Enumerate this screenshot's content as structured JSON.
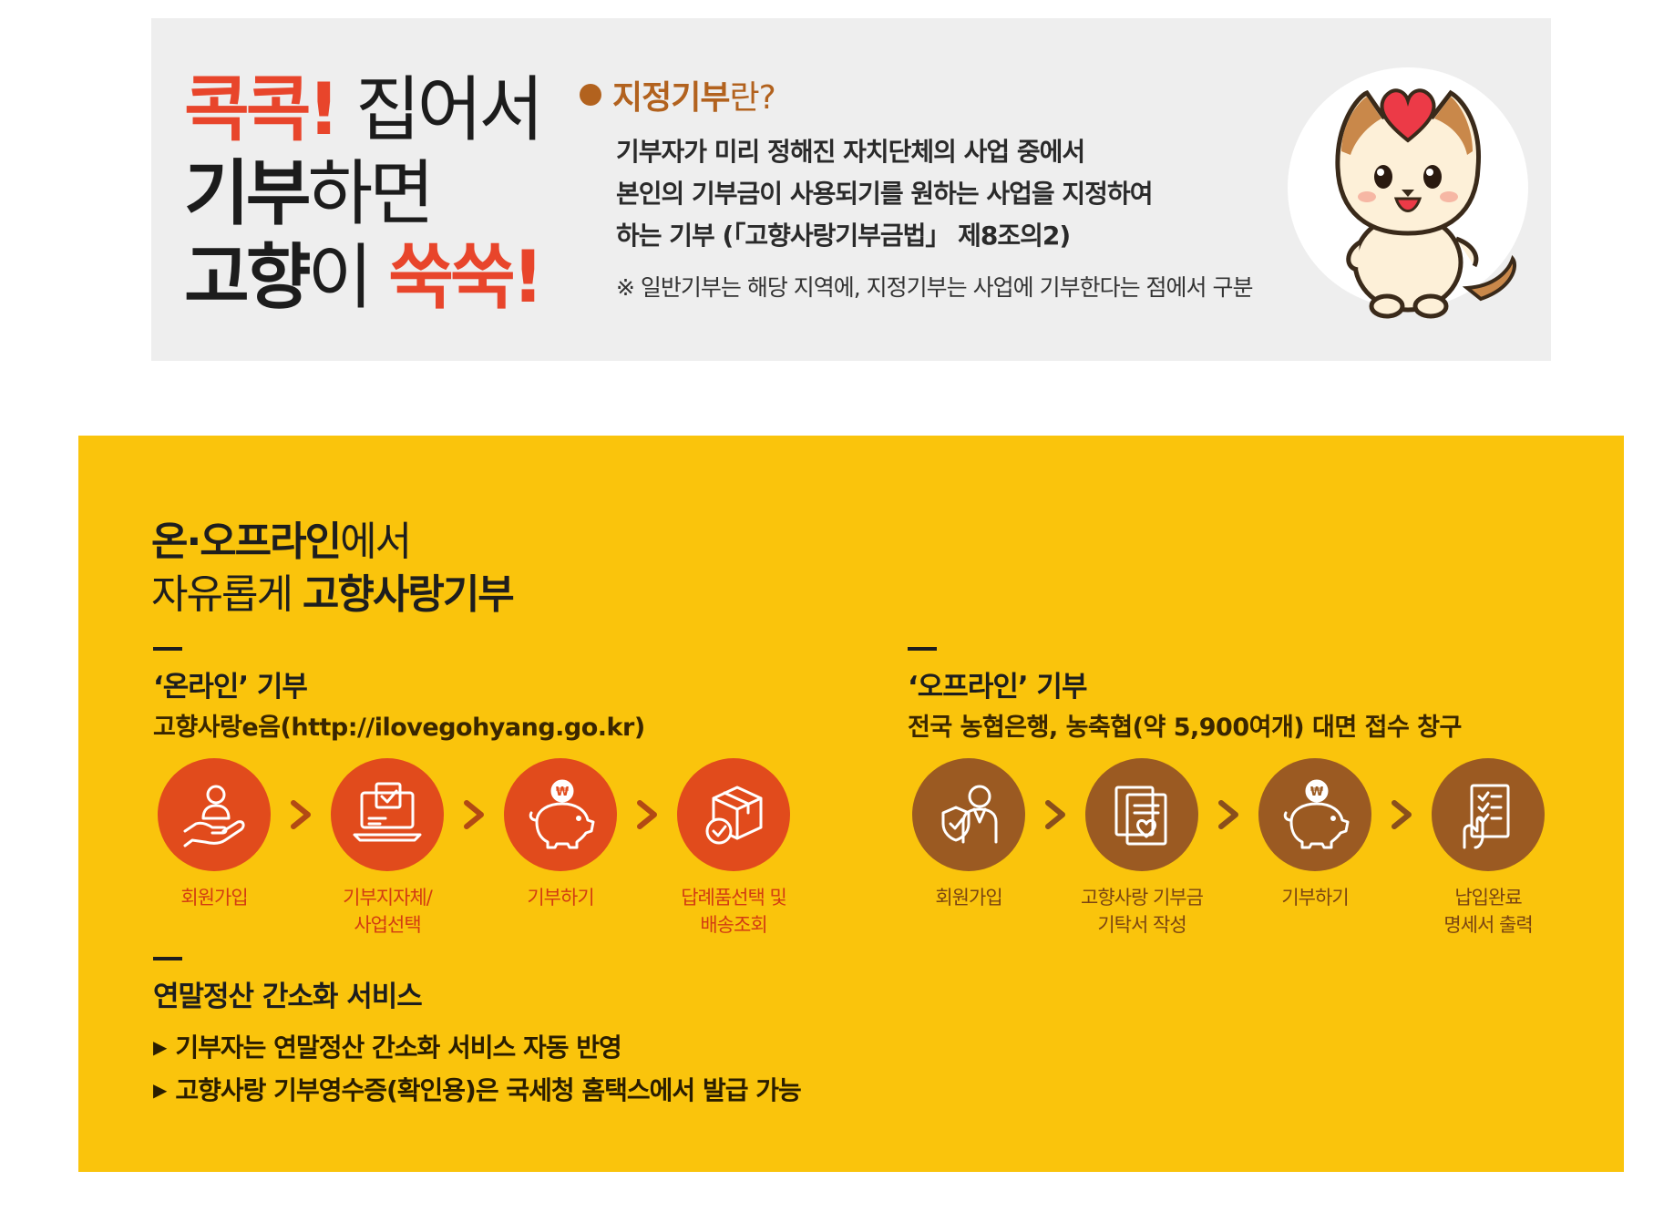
{
  "banner": {
    "slogan": {
      "line1_red": "콕콕!",
      "line1_rest": " 집어서",
      "line2_bold": "기부",
      "line2_rest": "하면",
      "line3_bold": "고향",
      "line3_mid": "이 ",
      "line3_red": "쑥쑥!"
    },
    "designated": {
      "heading_bold": "지정기부",
      "heading_rest": "란?",
      "desc_lines": [
        "기부자가 미리 정해진 자치단체의 사업 중에서",
        "본인의 기부금이 사용되기를 원하는 사업을 지정하여",
        "하는 기부 (「고향사랑기부금법」 제8조의2)"
      ],
      "note": "※ 일반기부는 해당 지역에, 지정기부는 사업에 기부한다는 점에서 구분"
    }
  },
  "main": {
    "title_line1_bold": "온·오프라인",
    "title_line1_rest": "에서",
    "title_line2_rest": "자유롭게 ",
    "title_line2_bold": "고향사랑기부",
    "online": {
      "title": "‘온라인’ 기부",
      "subtitle": "고향사랑e음(http://ilovegohyang.go.kr)",
      "steps": [
        {
          "icon": "hand-person-icon",
          "label": "회원가입"
        },
        {
          "icon": "laptop-check-icon",
          "label": "기부지자체/\n사업선택"
        },
        {
          "icon": "piggy-bank-icon",
          "label": "기부하기"
        },
        {
          "icon": "box-check-icon",
          "label": "답례품선택 및\n배송조회"
        }
      ]
    },
    "offline": {
      "title": "‘오프라인’ 기부",
      "subtitle": "전국 농협은행, 농축협(약 5,900여개) 대면 접수 창구",
      "steps": [
        {
          "icon": "person-shield-icon",
          "label": "회원가입"
        },
        {
          "icon": "document-heart-icon",
          "label": "고향사랑 기부금\n기탁서 작성"
        },
        {
          "icon": "piggy-bank-icon",
          "label": "기부하기"
        },
        {
          "icon": "checklist-icon",
          "label": "납입완료\n명세서 출력"
        }
      ]
    },
    "tax": {
      "title": "연말정산 간소화 서비스",
      "bullets": [
        "기부자는 연말정산 간소화 서비스 자동 반영",
        "고향사랑 기부영수증(확인용)은 국세청 홈택스에서 발급 가능"
      ]
    }
  },
  "colors": {
    "accent_red": "#e8452b",
    "yellow": "#fac40c",
    "online_circle": "#e14b1c",
    "offline_circle": "#9b5a22",
    "gray_card": "#eeeeee"
  }
}
